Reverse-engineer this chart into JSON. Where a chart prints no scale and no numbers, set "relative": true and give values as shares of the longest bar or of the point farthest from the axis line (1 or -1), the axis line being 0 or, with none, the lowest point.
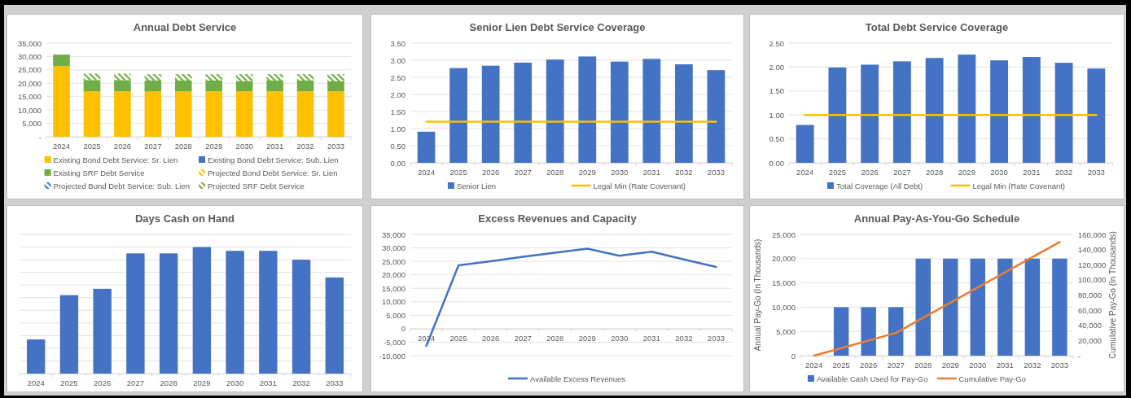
{
  "chart_data": [
    {
      "type": "bar",
      "title": "Annual Debt Service",
      "stacked": true,
      "grid": "y",
      "legend": "bottom",
      "categories": [
        "2024",
        "2025",
        "2026",
        "2027",
        "2028",
        "2029",
        "2030",
        "2031",
        "2032",
        "2033"
      ],
      "ylim": [
        0,
        35000
      ],
      "yticks": [
        {
          "value": 0,
          "label": "-"
        },
        {
          "value": 5000,
          "label": "5,000"
        },
        {
          "value": 10000,
          "label": "10,000"
        },
        {
          "value": 15000,
          "label": "15,000"
        },
        {
          "value": 20000,
          "label": "20,000"
        },
        {
          "value": 25000,
          "label": "25,000"
        },
        {
          "value": 30000,
          "label": "30,000"
        },
        {
          "value": 35000,
          "label": "35,000"
        }
      ],
      "series": [
        {
          "name": "Existing Bond Debt Service: Sr. Lien",
          "color": "#ffc000",
          "values": [
            26500,
            17000,
            17000,
            17000,
            17000,
            17000,
            17000,
            17000,
            17000,
            17000
          ]
        },
        {
          "name": "Existing Bond Debt Service: Sub. Lien",
          "color": "#4472c4",
          "values": [
            0,
            0,
            0,
            0,
            0,
            0,
            0,
            0,
            0,
            0
          ]
        },
        {
          "name": "Existing SRF Debt Service",
          "color": "#70ad47",
          "values": [
            4200,
            4200,
            4200,
            4000,
            4000,
            4000,
            3800,
            4000,
            4000,
            3700
          ]
        },
        {
          "name": "Projected Bond Debt Service: Sr. Lien",
          "color": "#ffc000",
          "values": [
            0,
            0,
            0,
            0,
            0,
            0,
            0,
            0,
            0,
            0
          ]
        },
        {
          "name": "Projected Bond Debt Service: Sub. Lien",
          "color": "#4472c4",
          "values": [
            0,
            0,
            0,
            0,
            0,
            0,
            0,
            0,
            0,
            0
          ]
        },
        {
          "name": "Projected SRF Debt Service",
          "color": "#70ad47",
          "values": [
            0,
            2400,
            2400,
            2400,
            2400,
            2400,
            2600,
            2400,
            2400,
            2700
          ]
        }
      ]
    },
    {
      "type": "bar",
      "title": "Senior Lien Debt Service Coverage",
      "grid": "y",
      "legend": "bottom",
      "categories": [
        "2024",
        "2025",
        "2026",
        "2027",
        "2028",
        "2029",
        "2030",
        "2031",
        "2032",
        "2033"
      ],
      "ylim": [
        0,
        3.5
      ],
      "yticks": [
        {
          "value": 0,
          "label": "0.00"
        },
        {
          "value": 0.5,
          "label": "0.50"
        },
        {
          "value": 1,
          "label": "1.00"
        },
        {
          "value": 1.5,
          "label": "1.50"
        },
        {
          "value": 2,
          "label": "2.00"
        },
        {
          "value": 2.5,
          "label": "2.50"
        },
        {
          "value": 3,
          "label": "3.00"
        },
        {
          "value": 3.5,
          "label": "3.50"
        }
      ],
      "series": [
        {
          "name": "Senior Lien",
          "color": "#4472c4",
          "values": [
            0.91,
            2.77,
            2.84,
            2.93,
            3.02,
            3.11,
            2.96,
            3.04,
            2.88,
            2.71
          ]
        },
        {
          "name": "Legal Min (Rate Covenant)",
          "type": "line",
          "color": "#ffc000",
          "values": [
            1.2,
            1.2,
            1.2,
            1.2,
            1.2,
            1.2,
            1.2,
            1.2,
            1.2,
            1.2
          ]
        }
      ]
    },
    {
      "type": "bar",
      "title": "Total Debt Service Coverage",
      "grid": "y",
      "legend": "bottom",
      "categories": [
        "2024",
        "2025",
        "2026",
        "2027",
        "2028",
        "2029",
        "2030",
        "2031",
        "2032",
        "2033"
      ],
      "ylim": [
        0,
        2.5
      ],
      "yticks": [
        {
          "value": 0,
          "label": "0.00"
        },
        {
          "value": 0.5,
          "label": "0.50"
        },
        {
          "value": 1,
          "label": "1.00"
        },
        {
          "value": 1.5,
          "label": "1.50"
        },
        {
          "value": 2,
          "label": "2.00"
        },
        {
          "value": 2.5,
          "label": "2.50"
        }
      ],
      "series": [
        {
          "name": "Total Coverage (All Debt)",
          "color": "#4472c4",
          "values": [
            0.79,
            1.99,
            2.05,
            2.12,
            2.19,
            2.26,
            2.14,
            2.21,
            2.09,
            1.97
          ]
        },
        {
          "name": "Legal Min (Rate Covenant)",
          "type": "line",
          "color": "#ffc000",
          "values": [
            1,
            1,
            1,
            1,
            1,
            1,
            1,
            1,
            1,
            1
          ]
        }
      ]
    },
    {
      "type": "bar",
      "title": "Days Cash on Hand",
      "relative": true,
      "grid": true,
      "categories": [
        "2024",
        "2025",
        "2026",
        "2027",
        "2028",
        "2029",
        "2030",
        "2031",
        "2032",
        "2033"
      ],
      "series": [
        {
          "color": "#4472c4",
          "values": [
            0.27,
            0.62,
            0.67,
            0.95,
            0.95,
            1,
            0.97,
            0.97,
            0.9,
            0.76
          ]
        }
      ]
    },
    {
      "type": "line",
      "title": "Excess Revenues and Capacity",
      "grid": "y",
      "legend": "bottom",
      "categories": [
        "2024",
        "2025",
        "2026",
        "2027",
        "2028",
        "2029",
        "2030",
        "2031",
        "2032",
        "2033"
      ],
      "ylim": [
        -10000,
        35000
      ],
      "yticks": [
        {
          "value": -10000,
          "label": "-10,000"
        },
        {
          "value": -5000,
          "label": "-5,000"
        },
        0,
        {
          "value": 5000,
          "label": "5,000"
        },
        {
          "value": 10000,
          "label": "10,000"
        },
        {
          "value": 15000,
          "label": "15,000"
        },
        {
          "value": 20000,
          "label": "20,000"
        },
        {
          "value": 25000,
          "label": "25,000"
        },
        {
          "value": 30000,
          "label": "30,000"
        },
        {
          "value": 35000,
          "label": "35,000"
        }
      ],
      "series": [
        {
          "name": "Available Excess Revenues",
          "color": "#4472c4",
          "values": [
            -6400,
            23500,
            25000,
            26700,
            28200,
            29700,
            27100,
            28600,
            25700,
            22900
          ]
        }
      ]
    },
    {
      "type": "bar",
      "title": "Annual Pay-As-You-Go Schedule",
      "grid": "y",
      "legend": "bottom",
      "ylabel": "Annual Pay-Go (In Thousands)",
      "y2label": "Cumulative Pay-Go (In Thousands)",
      "categories": [
        "2024",
        "2025",
        "2026",
        "2027",
        "2028",
        "2029",
        "2030",
        "2031",
        "2032",
        "2033"
      ],
      "ylim": [
        0,
        25000
      ],
      "yticks": [
        0,
        {
          "value": 5000,
          "label": "5,000"
        },
        {
          "value": 10000,
          "label": "10,000"
        },
        {
          "value": 15000,
          "label": "15,000"
        },
        {
          "value": 20000,
          "label": "20,000"
        },
        {
          "value": 25000,
          "label": "25,000"
        }
      ],
      "y2lim": [
        0,
        160000
      ],
      "y2ticks": [
        {
          "value": 0,
          "label": "-"
        },
        {
          "value": 20000,
          "label": "20,000"
        },
        {
          "value": 40000,
          "label": "40,000"
        },
        {
          "value": 60000,
          "label": "60,000"
        },
        {
          "value": 80000,
          "label": "80,000"
        },
        {
          "value": 100000,
          "label": "100,000"
        },
        {
          "value": 120000,
          "label": "120,000"
        },
        {
          "value": 140000,
          "label": "140,000"
        },
        {
          "value": 160000,
          "label": "160,000"
        }
      ],
      "series": [
        {
          "name": "Available Cash Used for Pay-Go",
          "color": "#4472c4",
          "values": [
            0,
            10000,
            10000,
            10000,
            20000,
            20000,
            20000,
            20000,
            20000,
            20000
          ]
        },
        {
          "name": "Cumulative Pay-Go",
          "type": "line",
          "axis": "y2",
          "color": "#ed7d31",
          "values": [
            0,
            10000,
            20000,
            30000,
            50000,
            70000,
            90000,
            110000,
            130000,
            150000
          ]
        }
      ]
    }
  ]
}
